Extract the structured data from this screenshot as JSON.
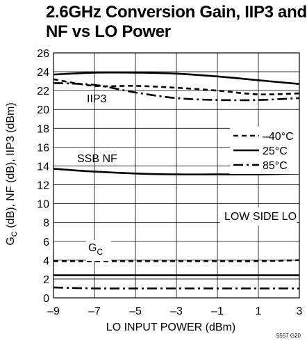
{
  "chart_data": {
    "type": "line",
    "title_lines": [
      "2.6GHz Conversion Gain, IIP3 and",
      "NF vs LO Power"
    ],
    "xlabel": "LO INPUT POWER (dBm)",
    "ylabel": "GC (dB), NF (dB), IIP3 (dBm)",
    "xlim": [
      -9,
      3
    ],
    "ylim": [
      0,
      26
    ],
    "x_ticks": [
      "–9",
      "–7",
      "–5",
      "–3",
      "–1",
      "1",
      "3"
    ],
    "y_ticks": [
      "0",
      "2",
      "4",
      "6",
      "8",
      "10",
      "12",
      "14",
      "16",
      "18",
      "20",
      "22",
      "24",
      "26"
    ],
    "grid": true,
    "legend_position": "right-middle",
    "legend": [
      {
        "label": "–40°C",
        "style": "dash"
      },
      {
        "label": "25°C",
        "style": "solid"
      },
      {
        "label": "85°C",
        "style": "dashdot"
      }
    ],
    "annotations": {
      "iip3": "IIP3",
      "nf": "SSB NF",
      "gc_main": "G",
      "gc_sub": "C",
      "lowside": "LOW SIDE LO",
      "figure_id": "5557 G20"
    },
    "series": [
      {
        "group": "IIP3",
        "temp": "–40°C",
        "style": "dash",
        "x": [
          -9,
          -7,
          -5,
          -3,
          -1,
          1,
          3
        ],
        "y": [
          23.2,
          22.5,
          22.5,
          22.3,
          22.0,
          21.6,
          21.7
        ]
      },
      {
        "group": "IIP3",
        "temp": "25°C",
        "style": "solid",
        "x": [
          -9,
          -7,
          -5,
          -3,
          -1,
          1,
          3
        ],
        "y": [
          23.7,
          23.9,
          23.9,
          23.8,
          23.5,
          23.1,
          22.7
        ]
      },
      {
        "group": "IIP3",
        "temp": "85°C",
        "style": "dashdot",
        "x": [
          -9,
          -7,
          -5,
          -3,
          -1,
          1,
          3
        ],
        "y": [
          22.8,
          22.6,
          21.8,
          21.2,
          21.0,
          21.0,
          21.2
        ]
      },
      {
        "group": "SSB NF",
        "temp": "25°C",
        "style": "solid",
        "x": [
          -9,
          -7,
          -5,
          -3,
          -1,
          1,
          3
        ],
        "y": [
          13.7,
          13.4,
          13.2,
          13.1,
          13.1,
          13.1,
          13.2
        ]
      },
      {
        "group": "GC",
        "temp": "–40°C",
        "style": "dash",
        "x": [
          -9,
          -7,
          -5,
          -3,
          -1,
          1,
          3
        ],
        "y": [
          3.9,
          3.9,
          3.9,
          3.9,
          3.9,
          3.9,
          4.0
        ]
      },
      {
        "group": "GC",
        "temp": "25°C",
        "style": "solid",
        "x": [
          -9,
          -7,
          -5,
          -3,
          -1,
          1,
          3
        ],
        "y": [
          2.4,
          2.4,
          2.4,
          2.4,
          2.4,
          2.4,
          2.4
        ]
      },
      {
        "group": "GC",
        "temp": "85°C",
        "style": "dashdot",
        "x": [
          -9,
          -7,
          -5,
          -3,
          -1,
          1,
          3
        ],
        "y": [
          1.1,
          1.0,
          1.0,
          1.0,
          1.0,
          1.0,
          1.0
        ]
      }
    ]
  }
}
